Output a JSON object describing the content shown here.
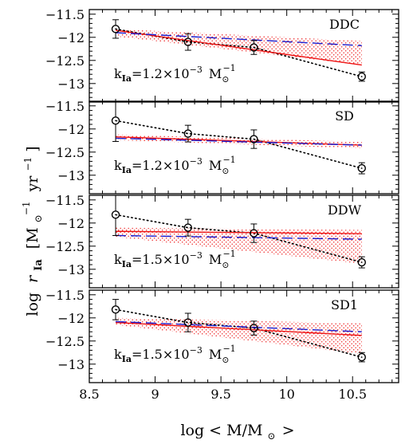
{
  "colors": {
    "axis": "#000000",
    "model_solid": "#ee1111",
    "model_dashed": "#1a1acc",
    "band_dots": "#ee2222",
    "data_dotted": "#000000"
  },
  "chart_data": {
    "type": "line",
    "layout": "4 vertically stacked panels sharing the x axis",
    "ylabel": "log r_Ia [M⊙⁻¹ yr⁻¹]",
    "ylabel_parts": {
      "log": "log",
      "r": "r",
      "sub": "Ia",
      "unit": "[M",
      "sun": "⊙",
      "exp1": "−1",
      "yr": "yr",
      "exp2": "−1",
      "close": "]"
    },
    "xlabel": "log < M/M⊙>",
    "xlabel_parts": {
      "pre": "log < M/M",
      "sun": "⊙",
      "post": ">"
    },
    "xlim": [
      8.5,
      10.85
    ],
    "ylim": [
      -13.4,
      -11.4
    ],
    "x_ticks": [
      "8.5",
      "9",
      "9.5",
      "10",
      "10.5"
    ],
    "y_ticks": [
      "−11.5",
      "−12",
      "−12.5",
      "−13"
    ],
    "grid": false,
    "panels": [
      {
        "label": "DDC",
        "k_text": {
          "k": "k",
          "sub": "Ia",
          "eq": "=1.2×10",
          "exp": "−3",
          "unit": "M",
          "sun": "⊙",
          "uexp": "−1"
        },
        "observed": {
          "x": [
            8.7,
            9.25,
            9.75,
            10.57
          ],
          "y": [
            -11.82,
            -12.1,
            -12.22,
            -12.85
          ],
          "err": [
            0.2,
            0.18,
            0.15,
            0.1
          ]
        },
        "model_solid": {
          "x": [
            8.7,
            10.57
          ],
          "y": [
            -11.85,
            -12.6
          ]
        },
        "model_dashed": {
          "x": [
            8.7,
            10.57
          ],
          "y": [
            -11.9,
            -12.18
          ]
        },
        "band": {
          "x": [
            8.7,
            10.57
          ],
          "upper": [
            -11.82,
            -12.08
          ],
          "lower": [
            -11.98,
            -12.6
          ]
        }
      },
      {
        "label": "SD",
        "k_text": {
          "k": "k",
          "sub": "Ia",
          "eq": "=1.2×10",
          "exp": "−3",
          "unit": "M",
          "sun": "⊙",
          "uexp": "−1"
        },
        "observed": {
          "x": [
            8.7,
            9.25,
            9.75,
            10.57
          ],
          "y": [
            -11.82,
            -12.1,
            -12.22,
            -12.85
          ],
          "err": [
            0.45,
            0.18,
            0.2,
            0.12
          ]
        },
        "model_solid": {
          "x": [
            8.7,
            10.57
          ],
          "y": [
            -12.17,
            -12.35
          ]
        },
        "model_dashed": {
          "x": [
            8.7,
            10.57
          ],
          "y": [
            -12.2,
            -12.35
          ]
        },
        "band": {
          "x": [
            8.7,
            10.57
          ],
          "upper": [
            -12.12,
            -12.28
          ],
          "lower": [
            -12.24,
            -12.42
          ]
        }
      },
      {
        "label": "DDW",
        "k_text": {
          "k": "k",
          "sub": "Ia",
          "eq": "=1.5×10",
          "exp": "−3",
          "unit": "M",
          "sun": "⊙",
          "uexp": "−1"
        },
        "observed": {
          "x": [
            8.7,
            9.25,
            9.75,
            10.57
          ],
          "y": [
            -11.82,
            -12.1,
            -12.22,
            -12.85
          ],
          "err": [
            0.45,
            0.18,
            0.2,
            0.12
          ]
        },
        "model_solid": {
          "x": [
            8.7,
            10.57
          ],
          "y": [
            -12.18,
            -12.23
          ]
        },
        "model_dashed": {
          "x": [
            8.7,
            10.57
          ],
          "y": [
            -12.27,
            -12.35
          ]
        },
        "band": {
          "x": [
            8.7,
            10.57
          ],
          "upper": [
            -12.1,
            -12.15
          ],
          "lower": [
            -12.3,
            -12.88
          ]
        }
      },
      {
        "label": "SD1",
        "k_text": {
          "k": "k",
          "sub": "Ia",
          "eq": "=1.5×10",
          "exp": "−3",
          "unit": "M",
          "sun": "⊙",
          "uexp": "−1"
        },
        "observed": {
          "x": [
            8.7,
            9.25,
            9.75,
            10.57
          ],
          "y": [
            -11.82,
            -12.1,
            -12.22,
            -12.85
          ],
          "err": [
            0.22,
            0.2,
            0.15,
            0.1
          ]
        },
        "model_solid": {
          "x": [
            8.7,
            10.57
          ],
          "y": [
            -12.1,
            -12.38
          ]
        },
        "model_dashed": {
          "x": [
            8.7,
            10.57
          ],
          "y": [
            -12.08,
            -12.3
          ]
        },
        "band": {
          "x": [
            8.7,
            10.57
          ],
          "upper": [
            -12.0,
            -12.12
          ],
          "lower": [
            -12.15,
            -12.78
          ]
        }
      }
    ]
  }
}
